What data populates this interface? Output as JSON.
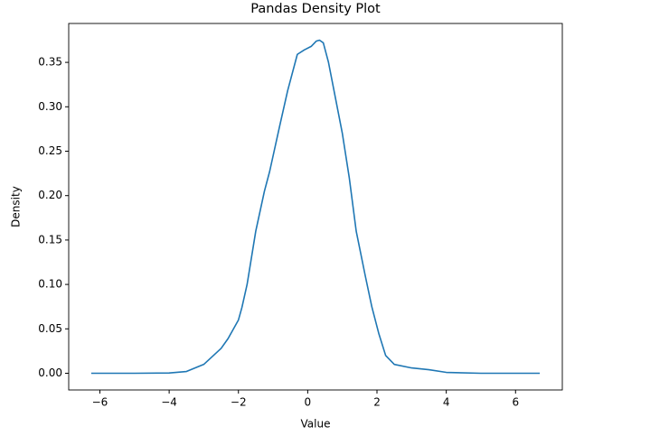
{
  "chart_data": {
    "type": "line",
    "title": "Pandas Density Plot",
    "xlabel": "Value",
    "ylabel": "Density",
    "x": [
      -6.25,
      -5,
      -4,
      -3.5,
      -3,
      -2.5,
      -2.3,
      -2,
      -1.9,
      -1.75,
      -1.5,
      -1.25,
      -1.1,
      -0.8,
      -0.58,
      -0.3,
      -0.1,
      0.1,
      0.25,
      0.34,
      0.45,
      0.6,
      0.8,
      1.0,
      1.2,
      1.4,
      1.66,
      1.85,
      2.05,
      2.25,
      2.5,
      3.0,
      3.5,
      4.0,
      5.0,
      6.7
    ],
    "series": [
      {
        "name": "Density",
        "color": "#1f77b4",
        "values": [
          0,
          0,
          0.0003,
          0.002,
          0.01,
          0.028,
          0.039,
          0.06,
          0.074,
          0.1,
          0.16,
          0.205,
          0.227,
          0.28,
          0.318,
          0.359,
          0.364,
          0.368,
          0.374,
          0.375,
          0.372,
          0.35,
          0.31,
          0.27,
          0.22,
          0.16,
          0.11,
          0.075,
          0.045,
          0.02,
          0.01,
          0.006,
          0.004,
          0.001,
          0,
          0
        ]
      }
    ],
    "xlim": [
      -6.9,
      7.35
    ],
    "xticks": [
      {
        "value": -6,
        "label": "−6"
      },
      {
        "value": -4,
        "label": "−4"
      },
      {
        "value": -2,
        "label": "−2"
      },
      0,
      2,
      4,
      6
    ],
    "ylim": [
      -0.0188,
      0.3938
    ],
    "yticks": [
      {
        "value": 0,
        "label": "0.00"
      },
      {
        "value": 0.05,
        "label": "0.05"
      },
      {
        "value": 0.1,
        "label": "0.10"
      },
      {
        "value": 0.15,
        "label": "0.15"
      },
      {
        "value": 0.2,
        "label": "0.20"
      },
      {
        "value": 0.25,
        "label": "0.25"
      },
      {
        "value": 0.3,
        "label": "0.30"
      },
      {
        "value": 0.35,
        "label": "0.35"
      }
    ],
    "grid": false
  }
}
